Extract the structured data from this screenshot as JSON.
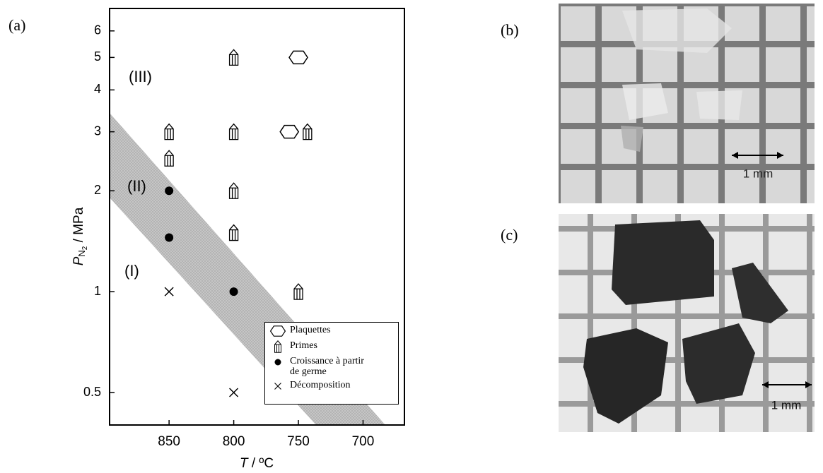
{
  "panel_labels": [
    "(a)",
    "(b)",
    "(c)"
  ],
  "scale_bars": [
    "1 mm",
    "1 mm"
  ],
  "chart_data": {
    "type": "scatter",
    "xlabel_parts": [
      "T",
      " / ºC"
    ],
    "ylabel_parts": [
      "P",
      "N",
      "2",
      " / MPa"
    ],
    "annotations": [
      "(III)",
      "(II)",
      "(I)"
    ],
    "xlim": [
      896,
      668
    ],
    "xticks": [
      850,
      800,
      750,
      700
    ],
    "ylim": [
      0.4,
      7
    ],
    "yticks": [
      0.5,
      1,
      2,
      3,
      4,
      5,
      6
    ],
    "log_y": true,
    "series": [
      {
        "name": "Plaquettes",
        "marker": "hexagon",
        "color": "#000000",
        "x": [
          750,
          757
        ],
        "values": [
          5,
          3
        ]
      },
      {
        "name": "Primes",
        "marker": "prism",
        "color": "#000000",
        "x": [
          850,
          850,
          800,
          800,
          800,
          800,
          750,
          743
        ],
        "values": [
          3,
          2.5,
          5,
          3,
          2,
          1.5,
          1,
          3
        ]
      },
      {
        "name": "Croissance à partir de germe",
        "marker": "dot",
        "color": "#000000",
        "x": [
          850,
          850,
          800
        ],
        "values": [
          2,
          1.45,
          1
        ]
      },
      {
        "name": "Décomposition",
        "marker": "cross",
        "color": "#000000",
        "x": [
          850,
          800
        ],
        "values": [
          1,
          0.5
        ]
      }
    ]
  }
}
